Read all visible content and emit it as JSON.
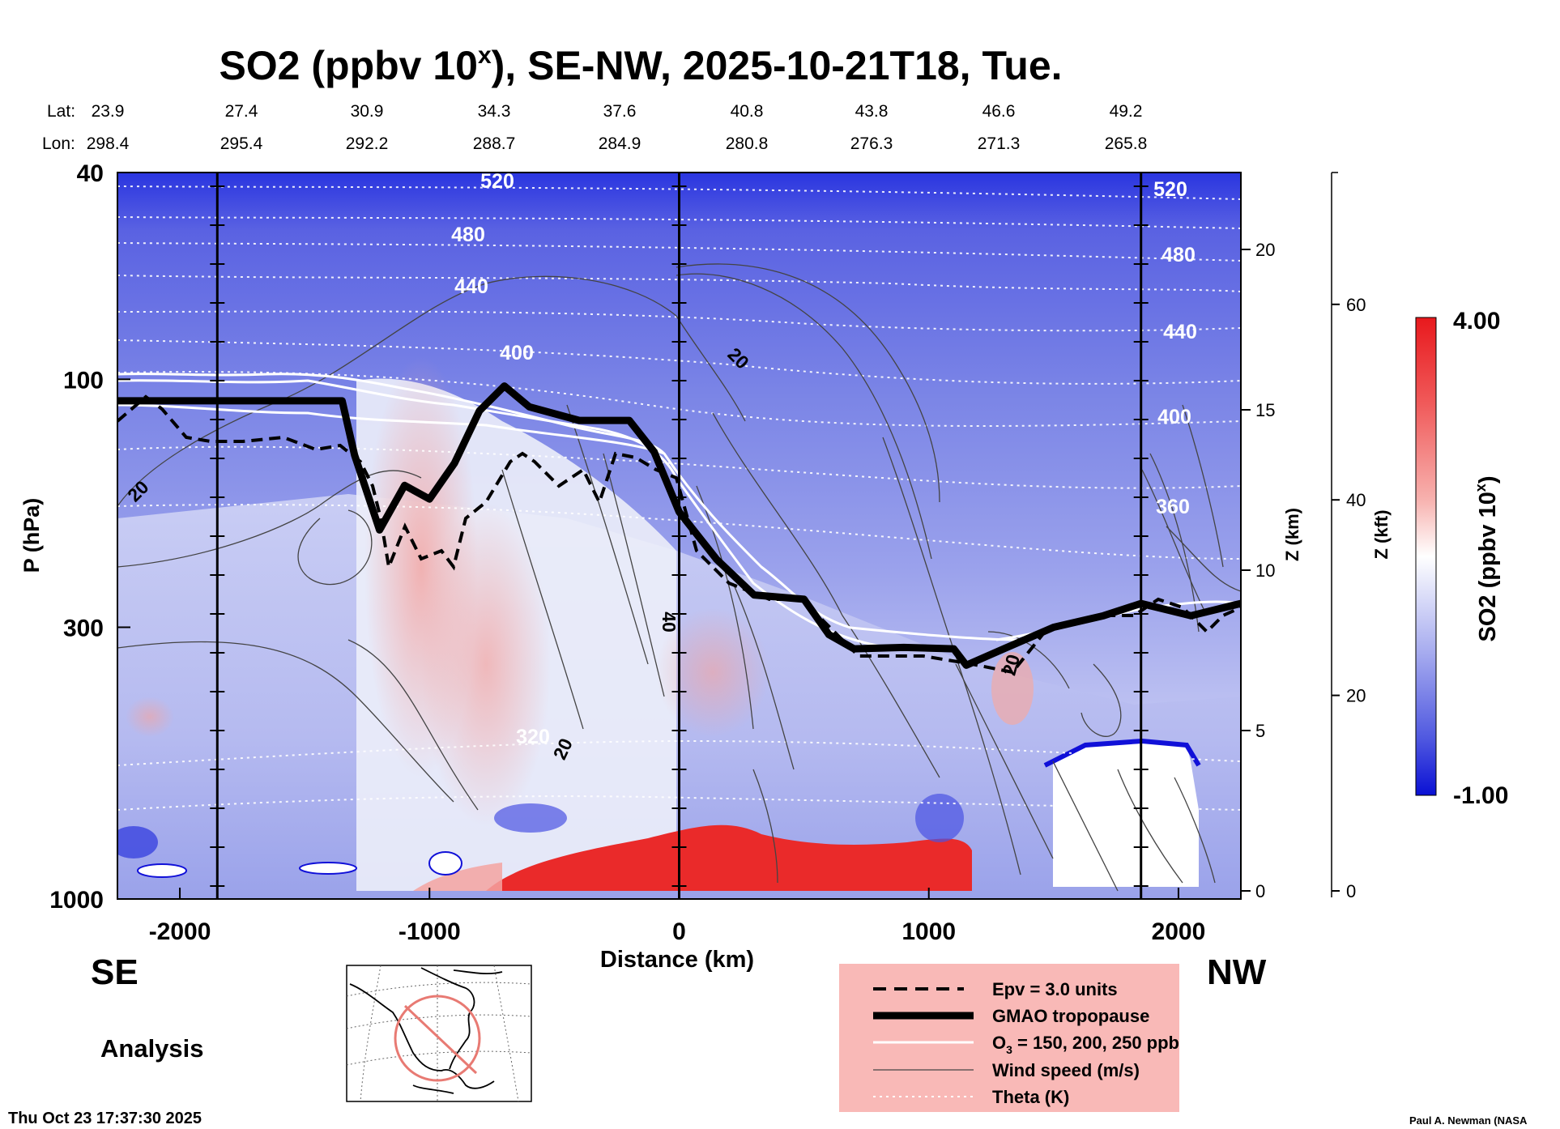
{
  "chart_data": {
    "type": "heatmap",
    "title_main": "SO2 (ppbv 10",
    "title_sup": "x",
    "title_rest": "), SE-NW, 2025-10-21T18, Tue.",
    "xlabel": "Distance (km)",
    "ylabel": "P (hPa)",
    "z_km_label": "Z (km)",
    "z_kft_label": "Z (kft)",
    "colorbar_label_main": "SO2 (ppbv 10",
    "colorbar_label_sup": "x",
    "colorbar_label_rest": ")",
    "colorbar": {
      "max_label": "4.00",
      "min_label": "-1.00",
      "range": [
        -1.0,
        4.0
      ]
    },
    "xlim": [
      -2250,
      2250
    ],
    "ylim_hpa": [
      1000,
      40
    ],
    "x_ticks": [
      {
        "value": -2000,
        "label": "-2000"
      },
      {
        "value": -1000,
        "label": "-1000"
      },
      {
        "value": 0,
        "label": "0"
      },
      {
        "value": 1000,
        "label": "1000"
      },
      {
        "value": 2000,
        "label": "2000"
      }
    ],
    "y_ticks": [
      {
        "value": 40,
        "label": "40"
      },
      {
        "value": 100,
        "label": "100"
      },
      {
        "value": 300,
        "label": "300"
      },
      {
        "value": 1000,
        "label": "1000"
      }
    ],
    "z_km_ticks": [
      {
        "value": 0,
        "label": "0"
      },
      {
        "value": 5,
        "label": "5"
      },
      {
        "value": 10,
        "label": "10"
      },
      {
        "value": 15,
        "label": "15"
      },
      {
        "value": 20,
        "label": "20"
      }
    ],
    "z_kft_ticks": [
      {
        "value": 0,
        "label": "0"
      },
      {
        "value": 20,
        "label": "20"
      },
      {
        "value": 40,
        "label": "40"
      },
      {
        "value": 60,
        "label": "60"
      }
    ],
    "vertical_lines_km": [
      -1850,
      0,
      1850
    ],
    "lat_label": "Lat:",
    "lon_label": "Lon:",
    "lat_values": [
      "23.9",
      "27.4",
      "30.9",
      "34.3",
      "37.6",
      "40.8",
      "43.8",
      "46.6",
      "49.2"
    ],
    "lon_values": [
      "298.4",
      "295.4",
      "292.2",
      "288.7",
      "284.9",
      "280.8",
      "276.3",
      "271.3",
      "265.8"
    ],
    "theta_labels": [
      "520",
      "480",
      "440",
      "400",
      "320",
      "520",
      "480",
      "440",
      "400",
      "360"
    ],
    "wind_labels": [
      "20",
      "20",
      "40",
      "20",
      "20"
    ],
    "tropopause_profile": [
      {
        "x": -2250,
        "p": 110
      },
      {
        "x": -1350,
        "p": 110
      },
      {
        "x": -1300,
        "p": 140
      },
      {
        "x": -1200,
        "p": 195
      },
      {
        "x": -1100,
        "p": 160
      },
      {
        "x": -1000,
        "p": 170
      },
      {
        "x": -900,
        "p": 145
      },
      {
        "x": -800,
        "p": 115
      },
      {
        "x": -700,
        "p": 103
      },
      {
        "x": -600,
        "p": 113
      },
      {
        "x": -400,
        "p": 120
      },
      {
        "x": -200,
        "p": 120
      },
      {
        "x": -100,
        "p": 138
      },
      {
        "x": 0,
        "p": 180
      },
      {
        "x": 150,
        "p": 222
      },
      {
        "x": 300,
        "p": 260
      },
      {
        "x": 500,
        "p": 265
      },
      {
        "x": 600,
        "p": 310
      },
      {
        "x": 700,
        "p": 330
      },
      {
        "x": 900,
        "p": 328
      },
      {
        "x": 1100,
        "p": 330
      },
      {
        "x": 1150,
        "p": 355
      },
      {
        "x": 1300,
        "p": 330
      },
      {
        "x": 1500,
        "p": 300
      },
      {
        "x": 1700,
        "p": 285
      },
      {
        "x": 1850,
        "p": 270
      },
      {
        "x": 2050,
        "p": 285
      },
      {
        "x": 2250,
        "p": 270
      }
    ],
    "legend": [
      {
        "style": "dashed",
        "label": "Epv = 3.0 units"
      },
      {
        "style": "thick",
        "label": "GMAO tropopause"
      },
      {
        "style": "white",
        "label_main": "O",
        "label_sub": "3",
        "label_rest": " = 150, 200, 250 ppb"
      },
      {
        "style": "thin",
        "label": "Wind speed (m/s)"
      },
      {
        "style": "dotted",
        "label": "Theta (K)"
      }
    ],
    "colors": {
      "so2_high": "#e8191d",
      "so2_low": "#1a1adf",
      "so2_zero": "#ffffff",
      "legend_bg": "#f9b9b7",
      "map_circle": "#e87a73"
    }
  },
  "labels": {
    "direction_left": "SE",
    "direction_right": "NW",
    "analysis": "Analysis",
    "timestamp": "Thu Oct 23 17:37:30 2025",
    "credit": "Paul A. Newman (NASA"
  }
}
